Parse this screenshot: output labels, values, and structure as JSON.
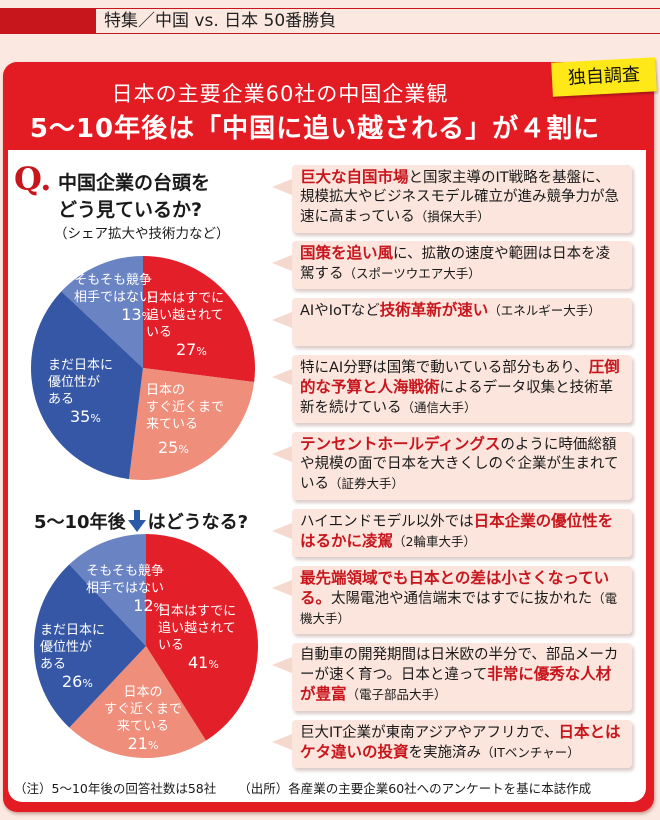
{
  "header": {
    "section_label": "特集／中国 vs. 日本 50番勝負"
  },
  "card": {
    "title_line1": "日本の主要企業60社の中国企業観",
    "title_line2": "5～10年後は「中国に追い越される」が４割に",
    "badge": "独自調査",
    "accent_color": "#e31b23",
    "badge_color": "#ffe818"
  },
  "question": {
    "mark": "Q.",
    "line1": "中国企業の台頭を",
    "line2": "どう見ているか?",
    "sub": "（シェア拡大や技術力など）"
  },
  "question2": {
    "prefix": "5～10年後",
    "suffix": "はどうなる?",
    "arrow_icon": "down-arrow"
  },
  "chart_data": [
    {
      "type": "pie",
      "title": "中国企業の台頭をどう見ているか?（シェア拡大や技術力など）",
      "categories": [
        "日本はすでに追い越されている",
        "日本のすぐ近くまで来ている",
        "まだ日本に優位性がある",
        "そもそも競争相手ではない"
      ],
      "values": [
        27,
        25,
        35,
        13
      ],
      "unit": "%",
      "colors": [
        "#e3202a",
        "#ef8e7a",
        "#3557a6",
        "#6a83c2"
      ],
      "start_angle_deg": 0,
      "direction": "clockwise"
    },
    {
      "type": "pie",
      "title": "5～10年後はどうなる?",
      "categories": [
        "日本はすでに追い越されている",
        "日本のすぐ近くまで来ている",
        "まだ日本に優位性がある",
        "そもそも競争相手ではない"
      ],
      "values": [
        41,
        21,
        26,
        12
      ],
      "unit": "%",
      "colors": [
        "#e3202a",
        "#ef8e7a",
        "#3557a6",
        "#6a83c2"
      ],
      "start_angle_deg": 0,
      "direction": "clockwise"
    }
  ],
  "pie1_labels": {
    "overtaken": {
      "l1": "日本はすでに",
      "l2": "追い越されて",
      "l3": "いる",
      "pct": "27",
      "unit": "%"
    },
    "close": {
      "l1": "日本の",
      "l2": "すぐ近くまで",
      "l3": "来ている",
      "pct": "25",
      "unit": "%"
    },
    "advantage": {
      "l1": "まだ日本に",
      "l2": "優位性が",
      "l3": "ある",
      "pct": "35",
      "unit": "%"
    },
    "not_rival": {
      "l1": "そもそも競争",
      "l2": "相手ではない",
      "pct": "13",
      "unit": "%"
    }
  },
  "pie2_labels": {
    "overtaken": {
      "l1": "日本はすでに",
      "l2": "追い越されて",
      "l3": "いる",
      "pct": "41",
      "unit": "%"
    },
    "close": {
      "l1": "日本の",
      "l2": "すぐ近くまで",
      "l3": "来ている",
      "pct": "21",
      "unit": "%"
    },
    "advantage": {
      "l1": "まだ日本に",
      "l2": "優位性が",
      "l3": "ある",
      "pct": "26",
      "unit": "%"
    },
    "not_rival": {
      "l1": "そもそも競争",
      "l2": "相手ではない",
      "pct": "12",
      "unit": "%"
    }
  },
  "comments": [
    {
      "hl": "巨大な自国市場",
      "text": "と国家主導のIT戦略を基盤に、規模拡大やビジネスモデル確立が進み競争力が急速に高まっている",
      "src": "（損保大手）"
    },
    {
      "hl": "国策を追い風",
      "text": "に、拡散の速度や範囲は日本を凌駕する",
      "src": "（スポーツウエア大手）"
    },
    {
      "pre": "AIやIoTなど",
      "hl": "技術革新が速い",
      "src": "（エネルギー大手）"
    },
    {
      "pre": "特にAI分野は国策で動いている部分もあり、",
      "hl": "圧倒的な予算と人海戦術",
      "text": "によるデータ収集と技術革新を続けている",
      "src": "（通信大手）"
    },
    {
      "hl": "テンセントホールディングス",
      "text": "のように時価総額や規模の面で日本を大きくしのぐ企業が生まれている",
      "src": "（証券大手）"
    },
    {
      "pre": "ハイエンドモデル以外では",
      "hl": "日本企業の優位性をはるかに凌駕",
      "src": "（2輪車大手）"
    },
    {
      "hl": "最先端領域でも日本との差は小さくなっている。",
      "text": "太陽電池や通信端末ではすでに抜かれた",
      "src": "（電機大手）"
    },
    {
      "pre": "自動車の開発期間は日米欧の半分で、部品メーカーが速く育つ。日本と違って",
      "hl": "非常に優秀な人材が豊富",
      "src": "（電子部品大手）"
    },
    {
      "pre": "巨大IT企業が東南アジアやアフリカで、",
      "hl": "日本とはケタ違いの投資",
      "text": "を実施済み",
      "src": "（ITベンチャー）"
    }
  ],
  "footer": {
    "note": "（注）5～10年後の回答社数は58社",
    "source": "（出所）各産業の主要企業60社へのアンケートを基に本誌作成"
  }
}
